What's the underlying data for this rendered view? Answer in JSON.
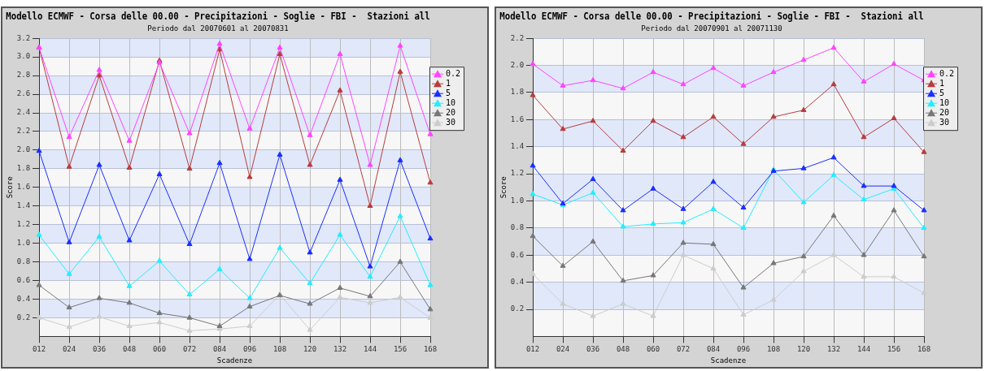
{
  "chart_data": [
    {
      "type": "line",
      "title": "Modello ECMWF - Corsa delle 00.00 - Precipitazioni - Soglie - FBI -  Stazioni all",
      "subtitle": "Periodo dal 20070601 al 20070831",
      "xlabel": "Scadenze",
      "ylabel": "Score",
      "categories": [
        "012",
        "024",
        "036",
        "048",
        "060",
        "072",
        "084",
        "096",
        "108",
        "120",
        "132",
        "144",
        "156",
        "168"
      ],
      "series": [
        {
          "name": "0.2",
          "color": "#ff44ff",
          "values": [
            3.1,
            2.14,
            2.86,
            2.1,
            2.94,
            2.18,
            3.14,
            2.23,
            3.1,
            2.16,
            3.03,
            1.84,
            3.12,
            2.17
          ]
        },
        {
          "name": "1",
          "color": "#b83c3c",
          "values": [
            3.1,
            1.82,
            2.8,
            1.81,
            2.96,
            1.8,
            3.08,
            1.71,
            3.03,
            1.84,
            2.64,
            1.4,
            2.84,
            1.65
          ]
        },
        {
          "name": "5",
          "color": "#1a2eff",
          "values": [
            1.99,
            1.01,
            1.84,
            1.03,
            1.74,
            0.99,
            1.86,
            0.83,
            1.95,
            0.9,
            1.68,
            0.75,
            1.89,
            1.05
          ]
        },
        {
          "name": "10",
          "color": "#22eeff",
          "values": [
            1.09,
            0.67,
            1.07,
            0.54,
            0.81,
            0.45,
            0.72,
            0.41,
            0.95,
            0.57,
            1.09,
            0.64,
            1.29,
            0.55
          ]
        },
        {
          "name": "20",
          "color": "#777777",
          "values": [
            0.55,
            0.31,
            0.41,
            0.36,
            0.25,
            0.2,
            0.11,
            0.32,
            0.44,
            0.35,
            0.52,
            0.43,
            0.8,
            0.29
          ]
        },
        {
          "name": "30",
          "color": "#cccccc",
          "values": [
            0.2,
            0.1,
            0.21,
            0.11,
            0.15,
            0.06,
            0.08,
            0.11,
            0.45,
            0.07,
            0.42,
            0.36,
            0.42,
            0.2
          ]
        }
      ],
      "ylim": [
        0,
        3.2
      ],
      "yticks": [
        {
          "value": 0.2,
          "label": "0.2"
        },
        {
          "value": 0.4,
          "label": "0.4"
        },
        {
          "value": 0.6,
          "label": "0.6"
        },
        {
          "value": 0.8,
          "label": "0.8"
        },
        {
          "value": 1.0,
          "label": "1.0"
        },
        {
          "value": 1.2,
          "label": "1.2"
        },
        {
          "value": 1.4,
          "label": "1.4"
        },
        {
          "value": 1.6,
          "label": "1.6"
        },
        {
          "value": 1.8,
          "label": "1.8"
        },
        {
          "value": 2.0,
          "label": "2.0"
        },
        {
          "value": 2.2,
          "label": "2.2"
        },
        {
          "value": 2.4,
          "label": "2.4"
        },
        {
          "value": 2.6,
          "label": "2.6"
        },
        {
          "value": 2.8,
          "label": "2.8"
        },
        {
          "value": 3.0,
          "label": "3.0"
        },
        {
          "value": 3.2,
          "label": "3.2"
        }
      ],
      "grid": true,
      "legend": "top right",
      "marker": "triangle",
      "line_style": "solid"
    },
    {
      "type": "line",
      "title": "Modello ECMWF - Corsa delle 00.00 - Precipitazioni - Soglie - FBI -  Stazioni all",
      "subtitle": "Periodo dal 20070901 al 20071130",
      "xlabel": "Scadenze",
      "ylabel": "Score",
      "categories": [
        "012",
        "024",
        "036",
        "048",
        "060",
        "072",
        "084",
        "096",
        "108",
        "120",
        "132",
        "144",
        "156",
        "168"
      ],
      "series": [
        {
          "name": "0.2",
          "color": "#ff44ff",
          "values": [
            2.01,
            1.85,
            1.89,
            1.83,
            1.95,
            1.86,
            1.98,
            1.85,
            1.95,
            2.04,
            2.13,
            1.88,
            2.01,
            1.89
          ]
        },
        {
          "name": "1",
          "color": "#b83c3c",
          "values": [
            1.78,
            1.53,
            1.59,
            1.37,
            1.59,
            1.47,
            1.62,
            1.42,
            1.62,
            1.67,
            1.86,
            1.47,
            1.61,
            1.36
          ]
        },
        {
          "name": "5",
          "color": "#1a2eff",
          "values": [
            1.26,
            0.98,
            1.16,
            0.93,
            1.09,
            0.94,
            1.14,
            0.95,
            1.22,
            1.24,
            1.32,
            1.11,
            1.11,
            0.93
          ]
        },
        {
          "name": "10",
          "color": "#22eeff",
          "values": [
            1.05,
            0.97,
            1.06,
            0.81,
            0.83,
            0.84,
            0.94,
            0.8,
            1.23,
            0.99,
            1.19,
            1.01,
            1.09,
            0.8
          ]
        },
        {
          "name": "20",
          "color": "#777777",
          "values": [
            0.74,
            0.52,
            0.7,
            0.41,
            0.45,
            0.69,
            0.68,
            0.36,
            0.54,
            0.59,
            0.89,
            0.6,
            0.93,
            0.59
          ]
        },
        {
          "name": "30",
          "color": "#cccccc",
          "values": [
            0.46,
            0.24,
            0.15,
            0.24,
            0.15,
            0.6,
            0.5,
            0.16,
            0.27,
            0.48,
            0.6,
            0.44,
            0.44,
            0.32
          ]
        }
      ],
      "ylim": [
        0,
        2.2
      ],
      "yticks": [
        {
          "value": 0.2,
          "label": "0.2"
        },
        {
          "value": 0.4,
          "label": "0.4"
        },
        {
          "value": 0.6,
          "label": "0.6"
        },
        {
          "value": 0.8,
          "label": "0.8"
        },
        {
          "value": 1.0,
          "label": "1.0"
        },
        {
          "value": 1.2,
          "label": "1.2"
        },
        {
          "value": 1.4,
          "label": "1.4"
        },
        {
          "value": 1.6,
          "label": "1.6"
        },
        {
          "value": 1.8,
          "label": "1.8"
        },
        {
          "value": 2.0,
          "label": "2.0"
        },
        {
          "value": 2.2,
          "label": "2.2"
        }
      ],
      "grid": true,
      "legend": "top right",
      "marker": "triangle",
      "line_style": "solid"
    }
  ]
}
